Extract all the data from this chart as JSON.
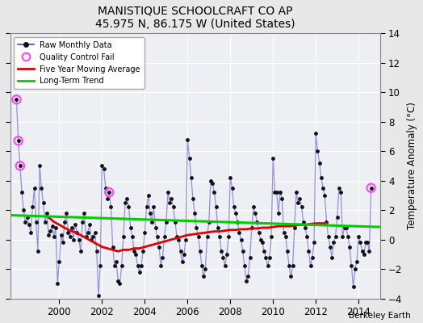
{
  "title": "MANISTIQUE SCHOOLCRAFT CO AP",
  "subtitle": "45.975 N, 86.175 W (United States)",
  "ylabel": "Temperature Anomaly (°C)",
  "credit": "Berkeley Earth",
  "xlim": [
    1997.7,
    2015.0
  ],
  "ylim": [
    -4,
    14
  ],
  "yticks": [
    -4,
    -2,
    0,
    2,
    4,
    6,
    8,
    10,
    12,
    14
  ],
  "xticks": [
    2000,
    2002,
    2004,
    2006,
    2008,
    2010,
    2012,
    2014
  ],
  "figure_bg": "#e8e8e8",
  "plot_bg": "#eeeef5",
  "grid_color": "#ffffff",
  "line_color": "#4444cc",
  "line_alpha": 0.55,
  "dot_color": "#111111",
  "qc_color": "#ff44ff",
  "ma_color": "#dd0000",
  "trend_color": "#00cc00",
  "raw_data": [
    [
      1998.0,
      9.5
    ],
    [
      1998.083,
      6.7
    ],
    [
      1998.167,
      5.0
    ],
    [
      1998.25,
      3.2
    ],
    [
      1998.333,
      2.0
    ],
    [
      1998.417,
      1.2
    ],
    [
      1998.5,
      1.5
    ],
    [
      1998.583,
      1.0
    ],
    [
      1998.667,
      0.5
    ],
    [
      1998.75,
      2.2
    ],
    [
      1998.833,
      3.5
    ],
    [
      1998.917,
      1.2
    ],
    [
      1999.0,
      -0.8
    ],
    [
      1999.083,
      5.0
    ],
    [
      1999.167,
      3.5
    ],
    [
      1999.25,
      2.5
    ],
    [
      1999.333,
      1.2
    ],
    [
      1999.417,
      1.8
    ],
    [
      1999.5,
      0.3
    ],
    [
      1999.583,
      0.6
    ],
    [
      1999.667,
      0.9
    ],
    [
      1999.75,
      0.2
    ],
    [
      1999.833,
      0.8
    ],
    [
      1999.917,
      -3.0
    ],
    [
      2000.0,
      -1.5
    ],
    [
      2000.083,
      0.3
    ],
    [
      2000.167,
      -0.2
    ],
    [
      2000.25,
      1.2
    ],
    [
      2000.333,
      1.8
    ],
    [
      2000.417,
      0.5
    ],
    [
      2000.5,
      0.2
    ],
    [
      2000.583,
      0.8
    ],
    [
      2000.667,
      0.0
    ],
    [
      2000.75,
      1.0
    ],
    [
      2000.833,
      0.5
    ],
    [
      2000.917,
      0.0
    ],
    [
      2001.0,
      -0.8
    ],
    [
      2001.083,
      1.2
    ],
    [
      2001.167,
      1.8
    ],
    [
      2001.25,
      0.2
    ],
    [
      2001.333,
      0.5
    ],
    [
      2001.417,
      1.0
    ],
    [
      2001.5,
      0.0
    ],
    [
      2001.583,
      0.2
    ],
    [
      2001.667,
      0.5
    ],
    [
      2001.75,
      -0.8
    ],
    [
      2001.833,
      -3.8
    ],
    [
      2001.917,
      -1.8
    ],
    [
      2002.0,
      5.0
    ],
    [
      2002.083,
      4.8
    ],
    [
      2002.167,
      3.5
    ],
    [
      2002.25,
      2.8
    ],
    [
      2002.333,
      3.2
    ],
    [
      2002.417,
      2.2
    ],
    [
      2002.5,
      -0.5
    ],
    [
      2002.583,
      -1.8
    ],
    [
      2002.667,
      -1.5
    ],
    [
      2002.75,
      -2.8
    ],
    [
      2002.833,
      -3.0
    ],
    [
      2002.917,
      -1.8
    ],
    [
      2003.0,
      0.2
    ],
    [
      2003.083,
      2.5
    ],
    [
      2003.167,
      2.8
    ],
    [
      2003.25,
      2.2
    ],
    [
      2003.333,
      0.8
    ],
    [
      2003.417,
      0.2
    ],
    [
      2003.5,
      -0.8
    ],
    [
      2003.583,
      -1.0
    ],
    [
      2003.667,
      -1.8
    ],
    [
      2003.75,
      -2.2
    ],
    [
      2003.833,
      -1.8
    ],
    [
      2003.917,
      -0.8
    ],
    [
      2004.0,
      0.5
    ],
    [
      2004.083,
      2.2
    ],
    [
      2004.167,
      3.0
    ],
    [
      2004.25,
      1.8
    ],
    [
      2004.333,
      1.2
    ],
    [
      2004.417,
      2.2
    ],
    [
      2004.5,
      0.8
    ],
    [
      2004.583,
      0.2
    ],
    [
      2004.667,
      -0.5
    ],
    [
      2004.75,
      -1.8
    ],
    [
      2004.833,
      -1.2
    ],
    [
      2004.917,
      0.2
    ],
    [
      2005.0,
      1.2
    ],
    [
      2005.083,
      3.2
    ],
    [
      2005.167,
      2.5
    ],
    [
      2005.25,
      2.8
    ],
    [
      2005.333,
      2.2
    ],
    [
      2005.417,
      1.2
    ],
    [
      2005.5,
      0.2
    ],
    [
      2005.583,
      0.0
    ],
    [
      2005.667,
      -0.8
    ],
    [
      2005.75,
      -1.5
    ],
    [
      2005.833,
      -1.0
    ],
    [
      2005.917,
      0.0
    ],
    [
      2006.0,
      6.8
    ],
    [
      2006.083,
      5.5
    ],
    [
      2006.167,
      4.2
    ],
    [
      2006.25,
      2.8
    ],
    [
      2006.333,
      1.8
    ],
    [
      2006.417,
      0.8
    ],
    [
      2006.5,
      0.2
    ],
    [
      2006.583,
      -0.8
    ],
    [
      2006.667,
      -1.8
    ],
    [
      2006.75,
      -2.5
    ],
    [
      2006.833,
      -2.0
    ],
    [
      2006.917,
      0.2
    ],
    [
      2007.0,
      1.2
    ],
    [
      2007.083,
      4.0
    ],
    [
      2007.167,
      3.8
    ],
    [
      2007.25,
      3.2
    ],
    [
      2007.333,
      2.2
    ],
    [
      2007.417,
      0.8
    ],
    [
      2007.5,
      0.2
    ],
    [
      2007.583,
      -0.8
    ],
    [
      2007.667,
      -1.2
    ],
    [
      2007.75,
      -1.8
    ],
    [
      2007.833,
      -1.0
    ],
    [
      2007.917,
      0.2
    ],
    [
      2008.0,
      4.2
    ],
    [
      2008.083,
      3.5
    ],
    [
      2008.167,
      2.2
    ],
    [
      2008.25,
      1.8
    ],
    [
      2008.333,
      1.2
    ],
    [
      2008.417,
      0.5
    ],
    [
      2008.5,
      0.0
    ],
    [
      2008.583,
      -0.8
    ],
    [
      2008.667,
      -1.8
    ],
    [
      2008.75,
      -2.8
    ],
    [
      2008.833,
      -2.5
    ],
    [
      2008.917,
      -1.2
    ],
    [
      2009.0,
      0.8
    ],
    [
      2009.083,
      2.2
    ],
    [
      2009.167,
      1.8
    ],
    [
      2009.25,
      1.2
    ],
    [
      2009.333,
      0.5
    ],
    [
      2009.417,
      0.0
    ],
    [
      2009.5,
      -0.2
    ],
    [
      2009.583,
      -0.8
    ],
    [
      2009.667,
      -1.2
    ],
    [
      2009.75,
      -1.8
    ],
    [
      2009.833,
      -1.2
    ],
    [
      2009.917,
      0.2
    ],
    [
      2010.0,
      5.5
    ],
    [
      2010.083,
      3.2
    ],
    [
      2010.167,
      3.2
    ],
    [
      2010.25,
      1.8
    ],
    [
      2010.333,
      3.2
    ],
    [
      2010.417,
      2.8
    ],
    [
      2010.5,
      0.5
    ],
    [
      2010.583,
      0.2
    ],
    [
      2010.667,
      -0.8
    ],
    [
      2010.75,
      -1.8
    ],
    [
      2010.833,
      -2.5
    ],
    [
      2010.917,
      -1.8
    ],
    [
      2011.0,
      0.8
    ],
    [
      2011.083,
      3.2
    ],
    [
      2011.167,
      2.5
    ],
    [
      2011.25,
      2.8
    ],
    [
      2011.333,
      2.2
    ],
    [
      2011.417,
      1.2
    ],
    [
      2011.5,
      0.8
    ],
    [
      2011.583,
      0.2
    ],
    [
      2011.667,
      -0.8
    ],
    [
      2011.75,
      -1.8
    ],
    [
      2011.833,
      -1.2
    ],
    [
      2011.917,
      -0.2
    ],
    [
      2012.0,
      7.2
    ],
    [
      2012.083,
      6.0
    ],
    [
      2012.167,
      5.2
    ],
    [
      2012.25,
      4.2
    ],
    [
      2012.333,
      3.5
    ],
    [
      2012.417,
      3.0
    ],
    [
      2012.5,
      1.2
    ],
    [
      2012.583,
      0.2
    ],
    [
      2012.667,
      -0.5
    ],
    [
      2012.75,
      -1.2
    ],
    [
      2012.833,
      -0.2
    ],
    [
      2012.917,
      0.2
    ],
    [
      2013.0,
      1.5
    ],
    [
      2013.083,
      3.5
    ],
    [
      2013.167,
      3.2
    ],
    [
      2013.25,
      0.2
    ],
    [
      2013.333,
      0.8
    ],
    [
      2013.417,
      0.8
    ],
    [
      2013.5,
      0.2
    ],
    [
      2013.583,
      -0.5
    ],
    [
      2013.667,
      -1.8
    ],
    [
      2013.75,
      -3.2
    ],
    [
      2013.833,
      -2.0
    ],
    [
      2013.917,
      -1.5
    ],
    [
      2014.0,
      0.2
    ],
    [
      2014.083,
      -0.2
    ],
    [
      2014.167,
      -0.8
    ],
    [
      2014.25,
      -1.0
    ],
    [
      2014.333,
      -0.2
    ],
    [
      2014.417,
      -0.2
    ],
    [
      2014.5,
      -0.8
    ],
    [
      2014.583,
      3.5
    ]
  ],
  "qc_fails": [
    [
      1998.0,
      9.5
    ],
    [
      1998.083,
      6.7
    ],
    [
      1998.167,
      5.0
    ],
    [
      2002.333,
      3.2
    ],
    [
      2014.583,
      3.5
    ]
  ],
  "moving_avg": [
    [
      1999.5,
      1.5
    ],
    [
      1999.75,
      1.2
    ],
    [
      2000.0,
      1.0
    ],
    [
      2000.25,
      0.8
    ],
    [
      2000.5,
      0.6
    ],
    [
      2000.75,
      0.5
    ],
    [
      2001.0,
      0.3
    ],
    [
      2001.25,
      0.1
    ],
    [
      2001.5,
      -0.1
    ],
    [
      2001.75,
      -0.3
    ],
    [
      2002.0,
      -0.5
    ],
    [
      2002.25,
      -0.6
    ],
    [
      2002.5,
      -0.7
    ],
    [
      2002.75,
      -0.8
    ],
    [
      2003.0,
      -0.7
    ],
    [
      2003.25,
      -0.7
    ],
    [
      2003.5,
      -0.6
    ],
    [
      2003.75,
      -0.6
    ],
    [
      2004.0,
      -0.5
    ],
    [
      2004.25,
      -0.4
    ],
    [
      2004.5,
      -0.3
    ],
    [
      2004.75,
      -0.2
    ],
    [
      2005.0,
      -0.1
    ],
    [
      2005.25,
      0.0
    ],
    [
      2005.5,
      0.1
    ],
    [
      2005.75,
      0.2
    ],
    [
      2006.0,
      0.3
    ],
    [
      2006.25,
      0.35
    ],
    [
      2006.5,
      0.4
    ],
    [
      2006.75,
      0.45
    ],
    [
      2007.0,
      0.5
    ],
    [
      2007.25,
      0.55
    ],
    [
      2007.5,
      0.55
    ],
    [
      2007.75,
      0.6
    ],
    [
      2008.0,
      0.65
    ],
    [
      2008.25,
      0.65
    ],
    [
      2008.5,
      0.7
    ],
    [
      2008.75,
      0.7
    ],
    [
      2009.0,
      0.75
    ],
    [
      2009.25,
      0.75
    ],
    [
      2009.5,
      0.8
    ],
    [
      2009.75,
      0.8
    ],
    [
      2010.0,
      0.85
    ],
    [
      2010.25,
      0.9
    ],
    [
      2010.5,
      0.9
    ],
    [
      2010.75,
      0.9
    ],
    [
      2011.0,
      0.95
    ],
    [
      2011.25,
      1.0
    ],
    [
      2011.5,
      1.0
    ],
    [
      2011.75,
      1.05
    ],
    [
      2012.0,
      1.1
    ],
    [
      2012.25,
      1.1
    ],
    [
      2012.5,
      1.1
    ]
  ],
  "trend_x": [
    1997.7,
    2015.0
  ],
  "trend_y": [
    1.65,
    0.85
  ]
}
